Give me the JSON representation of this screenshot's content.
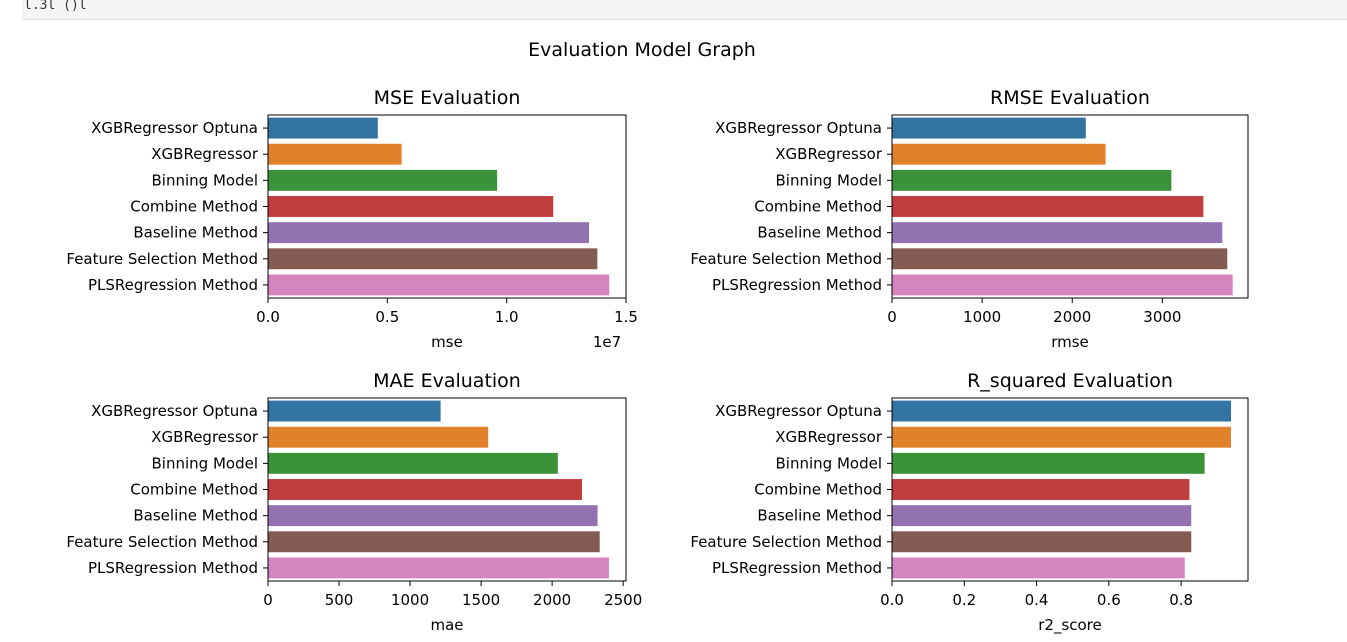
{
  "code_cell": {
    "visible_text": "l.3l  ()l"
  },
  "figure": {
    "suptitle": "Evaluation Model Graph"
  },
  "colors": [
    "#3274a1",
    "#e1812c",
    "#3a923a",
    "#c03d3e",
    "#9372b2",
    "#845b53",
    "#d684bd"
  ],
  "chart_data": [
    {
      "type": "bar",
      "orientation": "horizontal",
      "title": "MSE Evaluation",
      "xlabel": "mse",
      "ylabel": "",
      "xlim": [
        0,
        15000000
      ],
      "xticks": [
        0,
        5000000,
        10000000,
        15000000
      ],
      "xtick_labels": [
        "0.0",
        "0.5",
        "1.0",
        "1.5"
      ],
      "offset_text": "1e7",
      "categories": [
        "XGBRegressor Optuna",
        "XGBRegressor",
        "Binning Model",
        "Combine Method",
        "Baseline Method",
        "Feature Selection Method",
        "PLSRegression Method"
      ],
      "values": [
        4600000,
        5600000,
        9600000,
        11950000,
        13450000,
        13800000,
        14300000
      ],
      "grid": false
    },
    {
      "type": "bar",
      "orientation": "horizontal",
      "title": "RMSE Evaluation",
      "xlabel": "rmse",
      "ylabel": "",
      "xlim": [
        0,
        3950
      ],
      "xticks": [
        0,
        1000,
        2000,
        3000
      ],
      "xtick_labels": [
        "0",
        "1000",
        "2000",
        "3000"
      ],
      "offset_text": "",
      "categories": [
        "XGBRegressor Optuna",
        "XGBRegressor",
        "Binning Model",
        "Combine Method",
        "Baseline Method",
        "Feature Selection Method",
        "PLSRegression Method"
      ],
      "values": [
        2150,
        2370,
        3100,
        3455,
        3665,
        3720,
        3780
      ],
      "grid": false
    },
    {
      "type": "bar",
      "orientation": "horizontal",
      "title": "MAE Evaluation",
      "xlabel": "mae",
      "ylabel": "",
      "xlim": [
        0,
        2520
      ],
      "xticks": [
        0,
        500,
        1000,
        1500,
        2000,
        2500
      ],
      "xtick_labels": [
        "0",
        "500",
        "1000",
        "1500",
        "2000",
        "2500"
      ],
      "offset_text": "",
      "categories": [
        "XGBRegressor Optuna",
        "XGBRegressor",
        "Binning Model",
        "Combine Method",
        "Baseline Method",
        "Feature Selection Method",
        "PLSRegression Method"
      ],
      "values": [
        1215,
        1550,
        2040,
        2210,
        2320,
        2335,
        2400
      ],
      "grid": false
    },
    {
      "type": "bar",
      "orientation": "horizontal",
      "title": "R_squared Evaluation",
      "xlabel": "r2_score",
      "ylabel": "",
      "xlim": [
        0,
        0.985
      ],
      "xticks": [
        0,
        0.2,
        0.4,
        0.6,
        0.8
      ],
      "xtick_labels": [
        "0.0",
        "0.2",
        "0.4",
        "0.6",
        "0.8"
      ],
      "offset_text": "",
      "categories": [
        "XGBRegressor Optuna",
        "XGBRegressor",
        "Binning Model",
        "Combine Method",
        "Baseline Method",
        "Feature Selection Method",
        "PLSRegression Method"
      ],
      "values": [
        0.938,
        0.938,
        0.865,
        0.823,
        0.828,
        0.828,
        0.81
      ],
      "grid": false
    }
  ]
}
